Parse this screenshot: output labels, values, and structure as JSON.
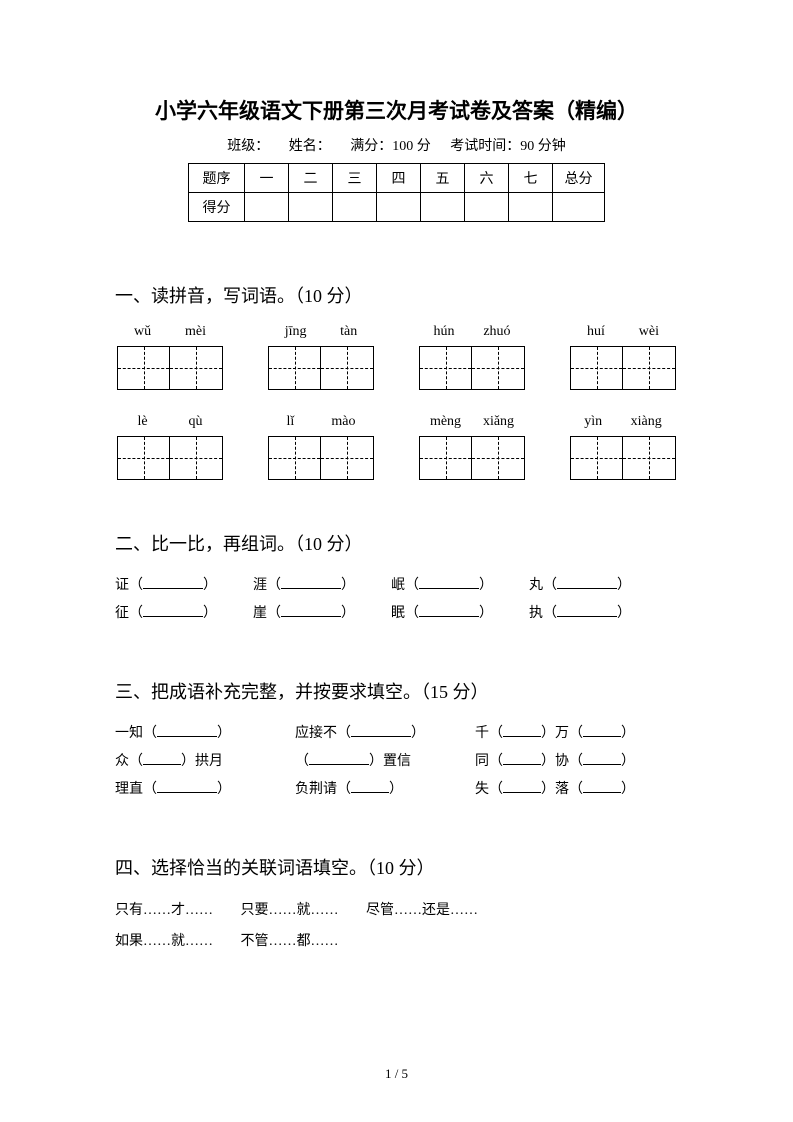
{
  "title": "小学六年级语文下册第三次月考试卷及答案（精编）",
  "info": {
    "class_label": "班级：",
    "name_label": "姓名：",
    "full_score": "满分：100 分",
    "exam_time": "考试时间：90 分钟"
  },
  "score_table": {
    "row1_label": "题序",
    "row2_label": "得分",
    "cols": [
      "一",
      "二",
      "三",
      "四",
      "五",
      "六",
      "七"
    ],
    "total": "总分"
  },
  "sections": {
    "s1": {
      "title": "一、读拼音，写词语。（10 分）",
      "row1": [
        [
          "wǔ",
          "mèi"
        ],
        [
          "jīng",
          "tàn"
        ],
        [
          "hún",
          "zhuó"
        ],
        [
          "huí",
          "wèi"
        ]
      ],
      "row2": [
        [
          "lè",
          "qù"
        ],
        [
          "lǐ",
          "mào"
        ],
        [
          "mèng",
          "xiǎng"
        ],
        [
          "yìn",
          "xiàng"
        ]
      ]
    },
    "s2": {
      "title": "二、比一比，再组词。（10 分）",
      "rows": [
        [
          "证（",
          "涯（",
          "岷（",
          "丸（"
        ],
        [
          "征（",
          "崖（",
          "眠（",
          "执（"
        ]
      ],
      "close": "）"
    },
    "s3": {
      "title": "三、把成语补充完整，并按要求填空。（15 分）",
      "rows": [
        [
          {
            "pre": "一知（",
            "post": "）",
            "bw": "w60"
          },
          {
            "pre": "应接不（",
            "post": "）",
            "bw": "w60"
          },
          {
            "pre": "千（",
            "mid": "）万（",
            "post": "）",
            "bw": "w38"
          }
        ],
        [
          {
            "pre": "众（",
            "post": "）拱月",
            "bw": "w38"
          },
          {
            "pre": "（",
            "post": "）置信",
            "bw": "w60"
          },
          {
            "pre": "同（",
            "mid": "）协（",
            "post": "）",
            "bw": "w38"
          }
        ],
        [
          {
            "pre": "理直（",
            "post": "）",
            "bw": "w60"
          },
          {
            "pre": "负荆请（",
            "post": "）",
            "bw": "w38"
          },
          {
            "pre": "失（",
            "mid": "）落（",
            "post": "）",
            "bw": "w38"
          }
        ]
      ]
    },
    "s4": {
      "title": "四、选择恰当的关联词语填空。（10 分）",
      "line1": [
        "只有……才……",
        "只要……就……",
        "尽管……还是……"
      ],
      "line2": [
        "如果……就……",
        "不管……都……"
      ]
    }
  },
  "page_num": "1 / 5"
}
